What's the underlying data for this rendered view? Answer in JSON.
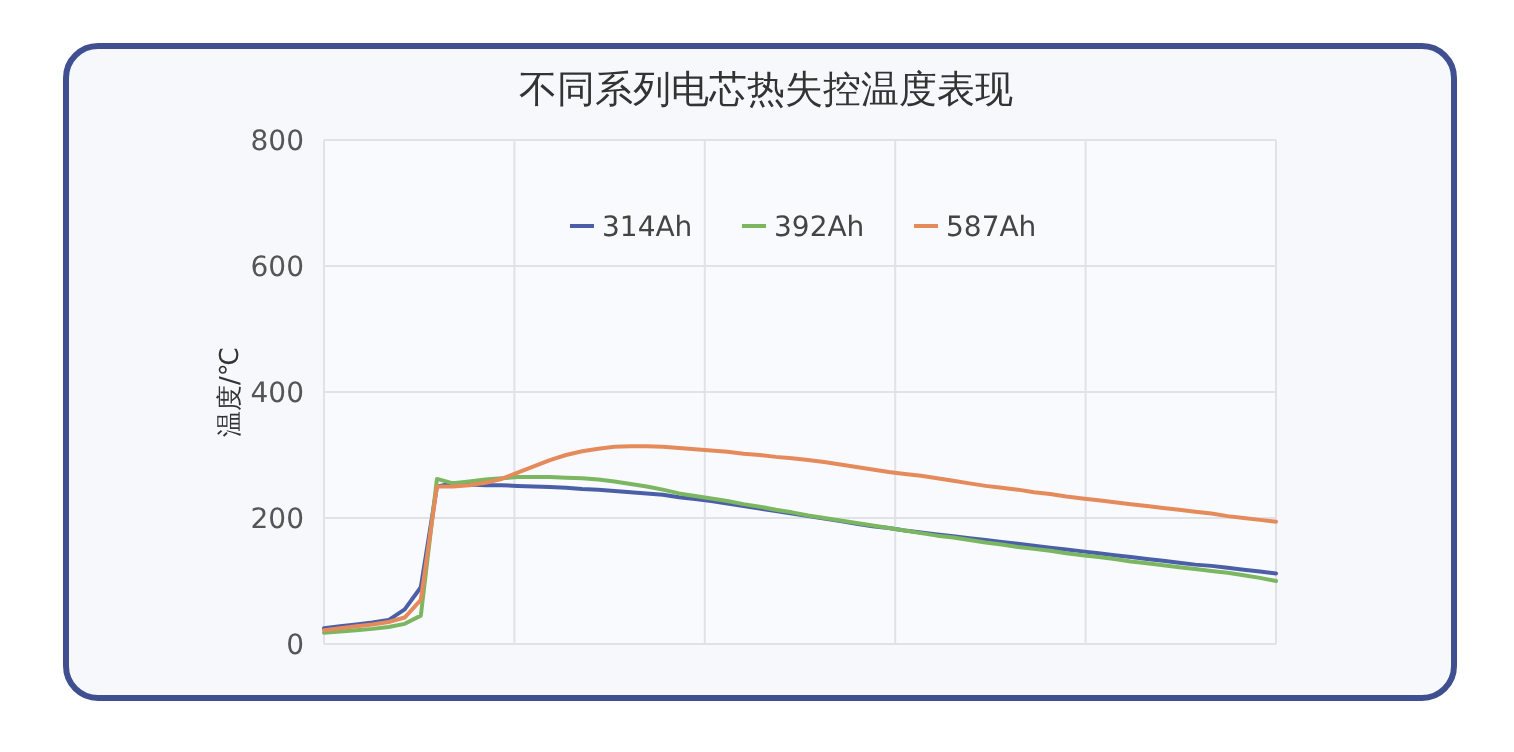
{
  "chart_data": {
    "type": "line",
    "title": "不同系列电芯热失控温度表现",
    "ylabel": "温度/℃",
    "categories": [
      null,
      null,
      null,
      null,
      null,
      null,
      null,
      null,
      null,
      null,
      null,
      null,
      null,
      null,
      null,
      null,
      null,
      null,
      null,
      null,
      null,
      null,
      null,
      null,
      null,
      null,
      null,
      null,
      null,
      null,
      null,
      null,
      null,
      null,
      null,
      null,
      null,
      null,
      null,
      null,
      null,
      null,
      null,
      null,
      null,
      null,
      null,
      null,
      null,
      null,
      null,
      null,
      null,
      null,
      null,
      null,
      null,
      null,
      null,
      null
    ],
    "series": [
      {
        "name": "314Ah",
        "color": "#4a5fa8",
        "values": [
          25,
          28,
          31,
          34,
          38,
          55,
          90,
          250,
          255,
          253,
          252,
          252,
          251,
          250,
          249,
          248,
          246,
          245,
          243,
          241,
          239,
          237,
          233,
          230,
          227,
          223,
          219,
          215,
          211,
          207,
          203,
          199,
          195,
          191,
          187,
          184,
          180,
          177,
          174,
          171,
          168,
          165,
          162,
          159,
          156,
          153,
          150,
          147,
          144,
          141,
          138,
          135,
          132,
          129,
          126,
          124,
          121,
          118,
          115,
          112
        ]
      },
      {
        "name": "392Ah",
        "color": "#7bb661",
        "values": [
          18,
          20,
          22,
          24,
          27,
          32,
          45,
          262,
          255,
          258,
          261,
          263,
          265,
          265,
          265,
          264,
          263,
          261,
          258,
          254,
          250,
          245,
          239,
          235,
          231,
          227,
          222,
          218,
          213,
          209,
          204,
          200,
          196,
          192,
          188,
          184,
          180,
          176,
          172,
          169,
          165,
          161,
          158,
          154,
          151,
          148,
          144,
          141,
          138,
          135,
          131,
          128,
          125,
          122,
          119,
          116,
          113,
          109,
          105,
          100
        ]
      },
      {
        "name": "587Ah",
        "color": "#e58a5a",
        "values": [
          22,
          25,
          28,
          31,
          35,
          42,
          70,
          250,
          250,
          252,
          256,
          262,
          272,
          282,
          292,
          300,
          306,
          310,
          313,
          314,
          314,
          313,
          311,
          309,
          307,
          305,
          302,
          300,
          297,
          295,
          292,
          289,
          285,
          281,
          277,
          273,
          270,
          267,
          263,
          259,
          255,
          251,
          248,
          245,
          241,
          238,
          234,
          231,
          228,
          225,
          222,
          219,
          216,
          213,
          210,
          207,
          203,
          200,
          197,
          194
        ]
      }
    ],
    "ylim": [
      0,
      800
    ],
    "yticks": [
      0,
      200,
      400,
      600,
      800
    ],
    "grid": true,
    "legend": "top",
    "tick_labels": "y"
  }
}
